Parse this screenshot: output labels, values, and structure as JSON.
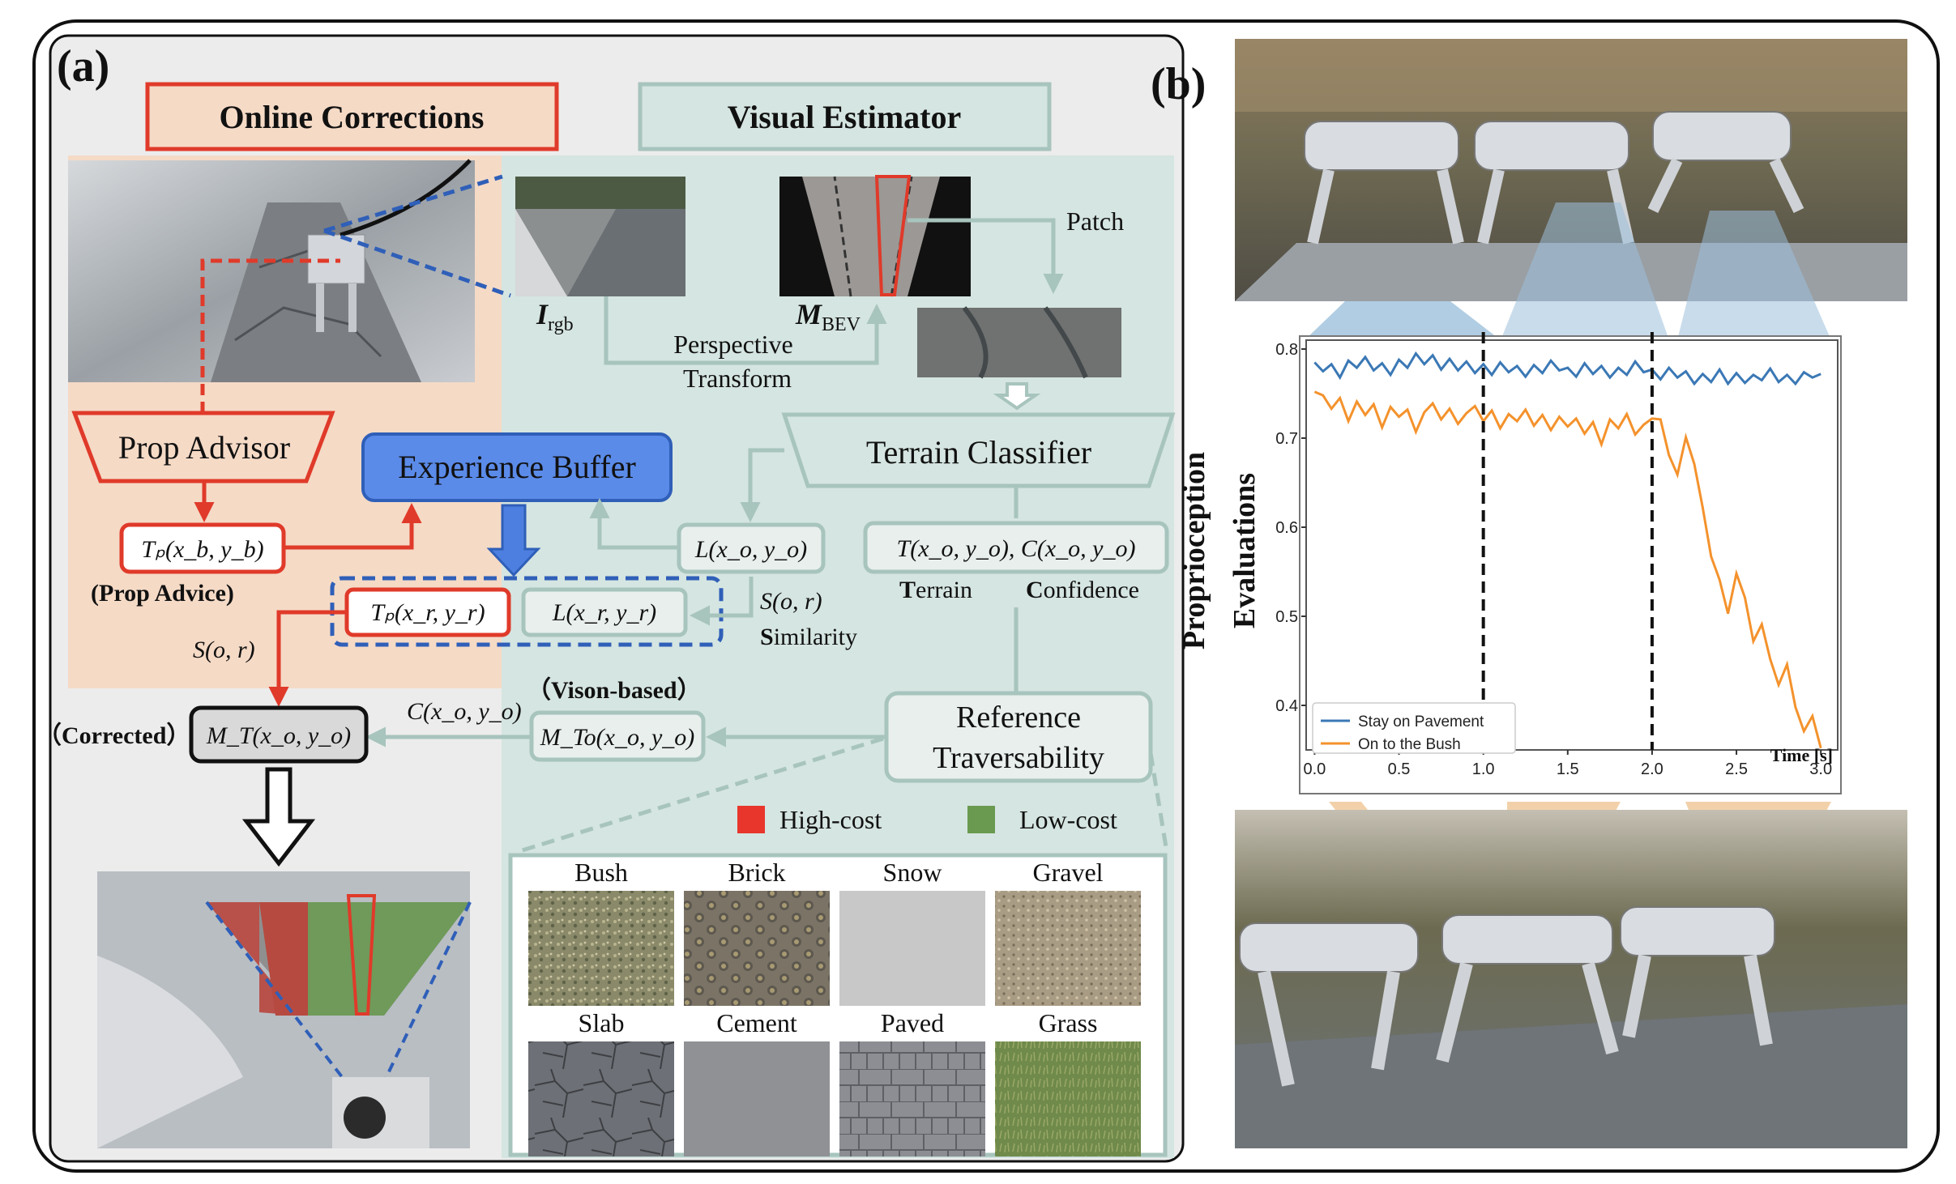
{
  "panel_a": {
    "label": "(a)",
    "online_corrections": "Online Corrections",
    "visual_estimator": "Visual Estimator",
    "i_rgb": {
      "main": "I",
      "sub": "rgb"
    },
    "m_bev": {
      "main": "M",
      "sub": "BEV"
    },
    "patch": "Patch",
    "perspective_transform": [
      "Perspective",
      "Transform"
    ],
    "terrain_classifier": "Terrain Classifier",
    "prop_advisor": "Prop Advisor",
    "experience_buffer": "Experience Buffer",
    "tp_xb": "Tₚ(x_b, y_b)",
    "prop_advice": "(Prop Advice)",
    "l_xo": "L(x_o, y_o)",
    "t_xo_c_xo": "T(x_o, y_o), C(x_o, y_o)",
    "terrain_label": {
      "bold": "T",
      "rest": "errain"
    },
    "confidence_label": {
      "bold": "C",
      "rest": "onfidence"
    },
    "tp_xr": "Tₚ(x_r, y_r)",
    "l_xr": "L(x_r, y_r)",
    "s_or_right": "S(o, r)",
    "similarity": {
      "bold": "S",
      "rest": "imilarity"
    },
    "s_or_left": "S(o, r)",
    "vision_based": "（Vison-based）",
    "c_xo": "C(x_o, y_o)",
    "corrected_label": "（Corrected）",
    "mt_xo": "M_T(x_o, y_o)",
    "mto_xo": "M_To(x_o, y_o)",
    "reference_traversability": [
      "Reference",
      "Traversability"
    ],
    "legend_high": "High-cost",
    "legend_low": "Low-cost",
    "high_color": "#e8362c",
    "low_color": "#6a9a50",
    "terrains": [
      {
        "name": "Bush",
        "cost": "high"
      },
      {
        "name": "Brick",
        "cost": "high"
      },
      {
        "name": "Snow",
        "cost": "high"
      },
      {
        "name": "Gravel",
        "cost": "high"
      },
      {
        "name": "Slab",
        "cost": "low"
      },
      {
        "name": "Cement",
        "cost": "low"
      },
      {
        "name": "Paved",
        "cost": "low"
      },
      {
        "name": "Grass",
        "cost": "low"
      }
    ]
  },
  "panel_b": {
    "label": "(b)",
    "ylabel_lines": [
      "Proprioception",
      "Evaluations"
    ],
    "xlabel": "Time [s]"
  },
  "chart_data": {
    "type": "line",
    "xlabel": "Time [s]",
    "ylabel": "Proprioception Evaluations",
    "xlim": [
      -0.05,
      3.1
    ],
    "ylim": [
      0.35,
      0.81
    ],
    "xticks": [
      "0.0",
      "0.5",
      "1.0",
      "1.5",
      "2.0",
      "2.5",
      "3.0"
    ],
    "yticks": [
      "0.4",
      "0.5",
      "0.6",
      "0.7",
      "0.8"
    ],
    "vlines": [
      1.0,
      2.0
    ],
    "legend_position": "bottom-left",
    "series": [
      {
        "name": "Stay on Pavement",
        "color": "#3b78b5",
        "x": [
          0.0,
          0.05,
          0.1,
          0.15,
          0.2,
          0.25,
          0.3,
          0.35,
          0.4,
          0.45,
          0.5,
          0.55,
          0.6,
          0.65,
          0.7,
          0.75,
          0.8,
          0.85,
          0.9,
          0.95,
          1.0,
          1.05,
          1.1,
          1.15,
          1.2,
          1.25,
          1.3,
          1.35,
          1.4,
          1.45,
          1.5,
          1.55,
          1.6,
          1.65,
          1.7,
          1.75,
          1.8,
          1.85,
          1.9,
          1.95,
          2.0,
          2.05,
          2.1,
          2.15,
          2.2,
          2.25,
          2.3,
          2.35,
          2.4,
          2.45,
          2.5,
          2.55,
          2.6,
          2.65,
          2.7,
          2.75,
          2.8,
          2.85,
          2.9,
          2.95,
          3.0
        ],
        "y": [
          0.785,
          0.775,
          0.783,
          0.768,
          0.787,
          0.779,
          0.791,
          0.776,
          0.784,
          0.771,
          0.788,
          0.779,
          0.795,
          0.783,
          0.793,
          0.777,
          0.789,
          0.776,
          0.786,
          0.773,
          0.783,
          0.771,
          0.785,
          0.774,
          0.781,
          0.769,
          0.782,
          0.773,
          0.787,
          0.776,
          0.779,
          0.769,
          0.784,
          0.772,
          0.781,
          0.768,
          0.779,
          0.771,
          0.786,
          0.774,
          0.777,
          0.766,
          0.779,
          0.768,
          0.775,
          0.761,
          0.772,
          0.763,
          0.777,
          0.761,
          0.773,
          0.762,
          0.771,
          0.765,
          0.778,
          0.763,
          0.771,
          0.761,
          0.774,
          0.768,
          0.772
        ]
      },
      {
        "name": "On to the Bush",
        "color": "#f4922c",
        "x": [
          0.0,
          0.05,
          0.1,
          0.15,
          0.2,
          0.25,
          0.3,
          0.35,
          0.4,
          0.45,
          0.5,
          0.55,
          0.6,
          0.65,
          0.7,
          0.75,
          0.8,
          0.85,
          0.9,
          0.95,
          1.0,
          1.05,
          1.1,
          1.15,
          1.2,
          1.25,
          1.3,
          1.35,
          1.4,
          1.45,
          1.5,
          1.55,
          1.6,
          1.65,
          1.7,
          1.75,
          1.8,
          1.85,
          1.9,
          1.95,
          2.0,
          2.05,
          2.1,
          2.15,
          2.2,
          2.25,
          2.3,
          2.35,
          2.4,
          2.45,
          2.5,
          2.55,
          2.6,
          2.65,
          2.7,
          2.75,
          2.8,
          2.85,
          2.9,
          2.95,
          3.0
        ],
        "y": [
          0.752,
          0.748,
          0.733,
          0.745,
          0.719,
          0.741,
          0.726,
          0.738,
          0.712,
          0.735,
          0.724,
          0.732,
          0.707,
          0.729,
          0.739,
          0.721,
          0.733,
          0.716,
          0.728,
          0.736,
          0.719,
          0.731,
          0.711,
          0.727,
          0.719,
          0.732,
          0.714,
          0.726,
          0.709,
          0.724,
          0.713,
          0.722,
          0.705,
          0.718,
          0.693,
          0.721,
          0.711,
          0.727,
          0.704,
          0.715,
          0.722,
          0.721,
          0.681,
          0.659,
          0.701,
          0.671,
          0.622,
          0.567,
          0.541,
          0.503,
          0.548,
          0.521,
          0.472,
          0.491,
          0.452,
          0.423,
          0.446,
          0.398,
          0.371,
          0.388,
          0.352
        ]
      }
    ]
  }
}
